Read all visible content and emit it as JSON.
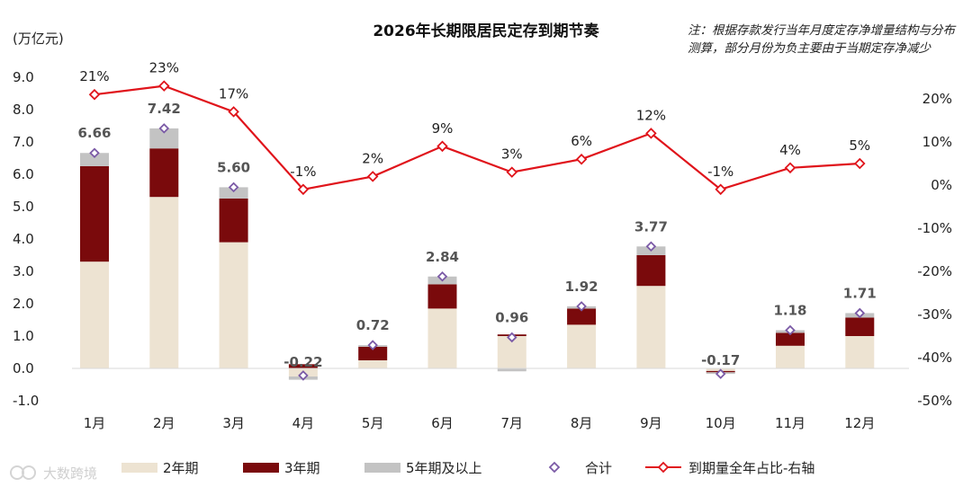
{
  "chart_data": {
    "type": "bar",
    "title": "2026年长期限居民定存到期节奏",
    "ylabel": "(万亿元)",
    "ylim": [
      -1.0,
      9.0
    ],
    "yticks": [
      "9.0",
      "8.0",
      "7.0",
      "6.0",
      "5.0",
      "4.0",
      "3.0",
      "2.0",
      "1.0",
      "0.0",
      "-1.0"
    ],
    "y2lim": [
      -50,
      20
    ],
    "y2ticks": [
      "20%",
      "10%",
      "0%",
      "-10%",
      "-20%",
      "-30%",
      "-40%",
      "-50%"
    ],
    "note": "注：根据存款发行当年月度定存净增量结构与分布测算，部分月份为负主要由于当期定存净减少",
    "categories": [
      "1月",
      "2月",
      "3月",
      "4月",
      "5月",
      "6月",
      "7月",
      "8月",
      "9月",
      "10月",
      "11月",
      "12月"
    ],
    "series": [
      {
        "name": "2年期",
        "kind": "stacked-bar",
        "color": "#ede3d2",
        "values": [
          3.3,
          5.3,
          3.9,
          -0.25,
          0.25,
          1.85,
          1.0,
          1.35,
          2.55,
          -0.08,
          0.7,
          1.0
        ]
      },
      {
        "name": "3年期",
        "kind": "stacked-bar",
        "color": "#7a0a0c",
        "values": [
          2.95,
          1.5,
          1.35,
          0.13,
          0.42,
          0.75,
          0.05,
          0.5,
          0.95,
          -0.04,
          0.4,
          0.57
        ]
      },
      {
        "name": "5年期及以上",
        "kind": "stacked-bar",
        "color": "#c3c3c3",
        "values": [
          0.41,
          0.62,
          0.35,
          -0.1,
          0.05,
          0.24,
          -0.09,
          0.07,
          0.27,
          -0.05,
          0.08,
          0.14
        ]
      },
      {
        "name": "合计",
        "kind": "marker",
        "color": "#7b5aa6",
        "values": [
          6.66,
          7.42,
          5.6,
          -0.22,
          0.72,
          2.84,
          0.96,
          1.92,
          3.77,
          -0.17,
          1.18,
          1.71
        ],
        "labels": [
          "6.66",
          "7.42",
          "5.60",
          "-0.22",
          "0.72",
          "2.84",
          "0.96",
          "1.92",
          "3.77",
          "-0.17",
          "1.18",
          "1.71"
        ]
      },
      {
        "name": "到期量全年占比-右轴",
        "kind": "line",
        "axis": "right",
        "color": "#e0141b",
        "values": [
          21,
          23,
          17,
          -1,
          2,
          9,
          3,
          6,
          12,
          -1,
          4,
          5
        ],
        "labels": [
          "21%",
          "23%",
          "17%",
          "-1%",
          "2%",
          "9%",
          "3%",
          "6%",
          "12%",
          "-1%",
          "4%",
          "5%"
        ]
      }
    ]
  },
  "watermark": "大数跨境"
}
